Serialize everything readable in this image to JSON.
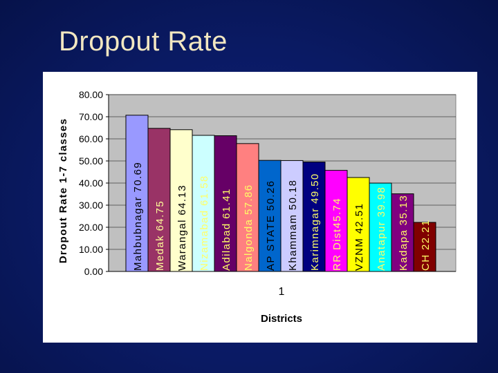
{
  "slide": {
    "title": "Dropout Rate"
  },
  "chart_data": {
    "type": "bar",
    "title": "Dropout Rate",
    "xlabel": "Districts",
    "ylabel": "Dropout Rate 1-7 classes",
    "ylim": [
      0,
      80
    ],
    "ytick_labels": [
      "0.00",
      "10.00",
      "20.00",
      "30.00",
      "40.00",
      "50.00",
      "60.00",
      "70.00",
      "80.00"
    ],
    "ytick_values": [
      0,
      10,
      20,
      30,
      40,
      50,
      60,
      70,
      80
    ],
    "categories": [
      "1"
    ],
    "grid": true,
    "legend": "none",
    "series": [
      {
        "name": "Mahbubnagar",
        "label": "Mahbubnagar 70.69",
        "value": 70.69,
        "color": "#9999ff",
        "text_color": "#000000"
      },
      {
        "name": "Medak",
        "label": "Medak 64.75",
        "value": 64.75,
        "color": "#993366",
        "text_color": "#ffff99"
      },
      {
        "name": "Warangal",
        "label": "Warangal 64.13",
        "value": 64.13,
        "color": "#ffffcc",
        "text_color": "#000000"
      },
      {
        "name": "Nizamabad",
        "label": "Nizamabad 61.58",
        "value": 61.58,
        "color": "#ccffff",
        "text_color": "#ffff66"
      },
      {
        "name": "Adilabad",
        "label": "Adilabad 61.41",
        "value": 61.41,
        "color": "#660066",
        "text_color": "#ffff66"
      },
      {
        "name": "Nalgonda",
        "label": "Nalgonda 57.86",
        "value": 57.86,
        "color": "#ff8080",
        "text_color": "#ffff66"
      },
      {
        "name": "AP STATE",
        "label": "AP STATE 50.26",
        "value": 50.26,
        "color": "#0066cc",
        "text_color": "#000000"
      },
      {
        "name": "Khammam",
        "label": "Khammam 50.18",
        "value": 50.18,
        "color": "#ccccff",
        "text_color": "#000000"
      },
      {
        "name": "Karimnagar",
        "label": "Karimnagar 49.50",
        "value": 49.5,
        "color": "#000080",
        "text_color": "#ffff66"
      },
      {
        "name": "RR Dist",
        "label": "RR Dist45.74",
        "value": 45.74,
        "color": "#ff00ff",
        "text_color": "#ffff66"
      },
      {
        "name": "VZNM",
        "label": "VZNM 42.51",
        "value": 42.51,
        "color": "#ffff00",
        "text_color": "#000000"
      },
      {
        "name": "Anatapur",
        "label": "Anatapur 39.98",
        "value": 39.98,
        "color": "#00ffff",
        "text_color": "#ffff66"
      },
      {
        "name": "Kadapa",
        "label": "Kadapa 35.13",
        "value": 35.13,
        "color": "#800080",
        "text_color": "#ffff66"
      },
      {
        "name": "CH",
        "label": "CH 22.21",
        "value": 22.21,
        "color": "#800000",
        "text_color": "#ffff66"
      }
    ]
  }
}
